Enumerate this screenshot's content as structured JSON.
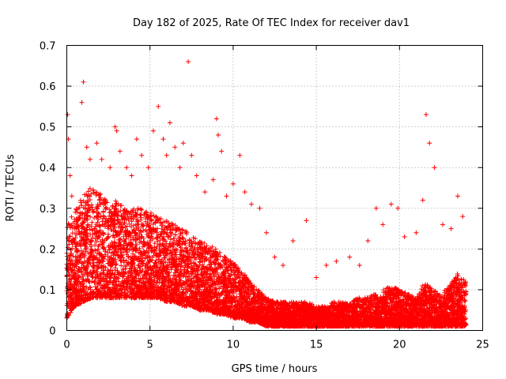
{
  "chart_data": {
    "type": "scatter",
    "title": "Day 182 of 2025, Rate Of TEC Index for receiver dav1",
    "xlabel": "GPS time / hours",
    "ylabel": "ROTI / TECUs",
    "xlim": [
      0,
      25
    ],
    "ylim": [
      0,
      0.7
    ],
    "x_ticks": [
      "0",
      "5",
      "10",
      "15",
      "20",
      "25"
    ],
    "y_ticks": [
      "0",
      "0.1",
      "0.2",
      "0.3",
      "0.4",
      "0.5",
      "0.6",
      "0.7"
    ],
    "grid": true,
    "marker": "+",
    "colors": {
      "series": "#ff0000",
      "grid": "#a0a0a0",
      "axes": "#000000"
    },
    "series": [
      {
        "name": "ROTI",
        "envelope_hours": [
          0,
          0.5,
          1,
          1.5,
          2,
          2.5,
          3,
          3.5,
          4,
          4.5,
          5,
          5.5,
          6,
          6.5,
          7,
          7.5,
          8,
          8.5,
          9,
          9.5,
          10,
          10.5,
          11,
          11.5,
          12,
          12.5,
          13,
          13.5,
          14,
          14.5,
          15,
          15.5,
          16,
          16.5,
          17,
          17.5,
          18,
          18.5,
          19,
          19.5,
          20,
          20.5,
          21,
          21.5,
          22,
          22.5,
          23,
          23.5,
          24
        ],
        "envelope_base": [
          0.03,
          0.06,
          0.07,
          0.08,
          0.08,
          0.08,
          0.08,
          0.08,
          0.08,
          0.08,
          0.08,
          0.08,
          0.07,
          0.07,
          0.06,
          0.06,
          0.05,
          0.05,
          0.04,
          0.04,
          0.03,
          0.03,
          0.02,
          0.02,
          0.01,
          0.01,
          0.01,
          0.01,
          0.01,
          0.01,
          0.01,
          0.01,
          0.01,
          0.01,
          0.01,
          0.01,
          0.01,
          0.01,
          0.01,
          0.01,
          0.01,
          0.01,
          0.01,
          0.01,
          0.01,
          0.01,
          0.01,
          0.01,
          0.01
        ],
        "envelope_top": [
          0.26,
          0.3,
          0.33,
          0.36,
          0.34,
          0.32,
          0.32,
          0.3,
          0.3,
          0.3,
          0.29,
          0.28,
          0.27,
          0.26,
          0.25,
          0.23,
          0.22,
          0.21,
          0.2,
          0.18,
          0.17,
          0.15,
          0.12,
          0.1,
          0.08,
          0.07,
          0.07,
          0.07,
          0.07,
          0.07,
          0.06,
          0.06,
          0.07,
          0.07,
          0.07,
          0.08,
          0.08,
          0.09,
          0.1,
          0.11,
          0.1,
          0.09,
          0.08,
          0.12,
          0.1,
          0.09,
          0.11,
          0.14,
          0.12
        ],
        "outliers": [
          [
            0.05,
            0.53
          ],
          [
            0.1,
            0.47
          ],
          [
            0.2,
            0.38
          ],
          [
            0.3,
            0.33
          ],
          [
            0.9,
            0.56
          ],
          [
            1.0,
            0.61
          ],
          [
            1.2,
            0.45
          ],
          [
            1.4,
            0.42
          ],
          [
            1.8,
            0.46
          ],
          [
            2.1,
            0.42
          ],
          [
            2.6,
            0.4
          ],
          [
            2.9,
            0.5
          ],
          [
            3.0,
            0.49
          ],
          [
            3.2,
            0.44
          ],
          [
            3.6,
            0.4
          ],
          [
            3.9,
            0.38
          ],
          [
            4.2,
            0.47
          ],
          [
            4.5,
            0.43
          ],
          [
            4.9,
            0.4
          ],
          [
            5.2,
            0.49
          ],
          [
            5.5,
            0.55
          ],
          [
            5.8,
            0.47
          ],
          [
            6.0,
            0.43
          ],
          [
            6.2,
            0.51
          ],
          [
            6.5,
            0.45
          ],
          [
            6.8,
            0.4
          ],
          [
            7.0,
            0.46
          ],
          [
            7.3,
            0.66
          ],
          [
            7.5,
            0.43
          ],
          [
            7.8,
            0.38
          ],
          [
            8.3,
            0.34
          ],
          [
            8.8,
            0.37
          ],
          [
            9.0,
            0.52
          ],
          [
            9.1,
            0.48
          ],
          [
            9.3,
            0.44
          ],
          [
            9.6,
            0.33
          ],
          [
            10.0,
            0.36
          ],
          [
            10.4,
            0.43
          ],
          [
            10.7,
            0.34
          ],
          [
            11.1,
            0.31
          ],
          [
            11.6,
            0.3
          ],
          [
            12.0,
            0.24
          ],
          [
            12.5,
            0.18
          ],
          [
            13.0,
            0.16
          ],
          [
            13.6,
            0.22
          ],
          [
            14.4,
            0.27
          ],
          [
            15.0,
            0.13
          ],
          [
            15.6,
            0.16
          ],
          [
            16.2,
            0.17
          ],
          [
            17.0,
            0.18
          ],
          [
            17.6,
            0.16
          ],
          [
            18.1,
            0.22
          ],
          [
            18.6,
            0.3
          ],
          [
            19.0,
            0.26
          ],
          [
            19.5,
            0.31
          ],
          [
            19.9,
            0.3
          ],
          [
            20.3,
            0.23
          ],
          [
            21.0,
            0.24
          ],
          [
            21.4,
            0.32
          ],
          [
            21.6,
            0.53
          ],
          [
            21.8,
            0.46
          ],
          [
            22.1,
            0.4
          ],
          [
            22.6,
            0.26
          ],
          [
            23.1,
            0.25
          ],
          [
            23.5,
            0.33
          ],
          [
            23.8,
            0.28
          ]
        ]
      }
    ]
  }
}
